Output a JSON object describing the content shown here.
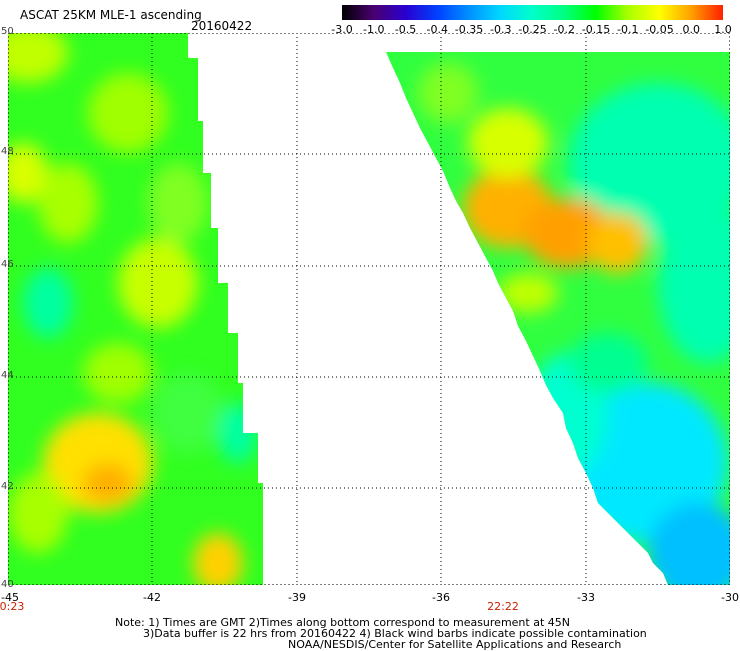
{
  "header": {
    "title": "ASCAT 25KM MLE-1 ascending",
    "date": "20160422"
  },
  "colorbar": {
    "labels": [
      "-3.0",
      "-1.0",
      "-0.5",
      "-0.4",
      "-0.35",
      "-0.3",
      "-0.25",
      "-0.2",
      "-0.15",
      "-0.1",
      "-0.05",
      "0.0",
      "1.0"
    ],
    "colors": [
      "#000000",
      "#4a0070",
      "#2a00d0",
      "#0040ff",
      "#0090ff",
      "#00d8ff",
      "#00ffc8",
      "#00ff80",
      "#00ff00",
      "#a8ff00",
      "#ffff00",
      "#ffa000",
      "#ff2000"
    ]
  },
  "map": {
    "lat_labels": [
      "50",
      "48",
      "46",
      "44",
      "42",
      "40"
    ],
    "lon_labels": [
      "-45",
      "-42",
      "-39",
      "-36",
      "-33",
      "-30"
    ],
    "time_labels": [
      "0:23",
      "22:22"
    ]
  },
  "notes": {
    "line1": "Note: 1) Times are GMT 2)Times along bottom correspond to measurement at 45N",
    "line2": "3)Data buffer is 22 hrs from 20160422 4) Black wind barbs indicate possible contamination",
    "line3": "NOAA/NESDIS/Center for Satellite Applications and Research"
  }
}
